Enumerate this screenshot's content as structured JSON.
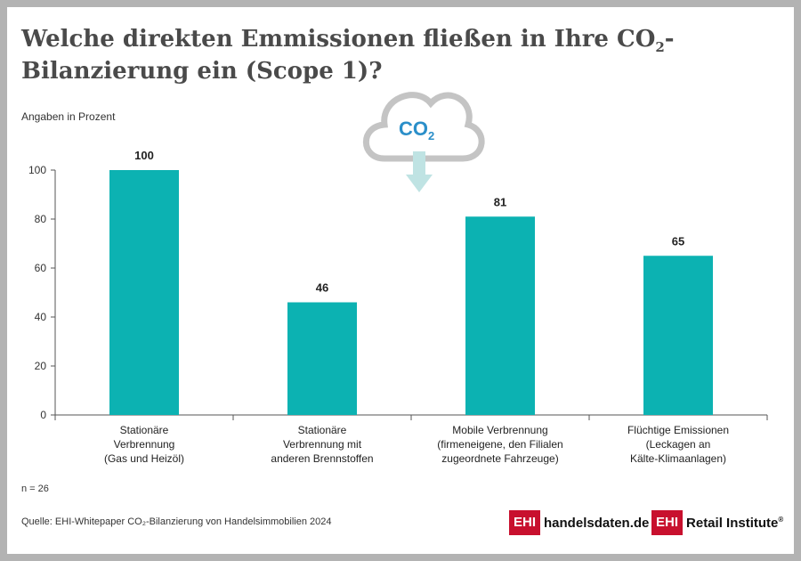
{
  "title": {
    "part1": "Welche direkten Emmissionen fließen in Ihre CO",
    "sub": "2",
    "part2": "-Bilanzierung ein (Scope 1)?"
  },
  "subtitle": "Angaben in Prozent",
  "icon": {
    "name": "co2-cloud-icon",
    "text": "CO",
    "sub": "2",
    "cloud_color": "#c4c4c4",
    "arrow_color": "#bfe3e3",
    "text_color": "#2b8fc9"
  },
  "note": "n = 26",
  "source": "Quelle: EHI-Whitepaper CO₂-Bilanzierung von Handelsimmobilien 2024",
  "logos": {
    "left": {
      "box": "EHI",
      "text": "handelsdaten.de"
    },
    "right": {
      "box": "EHI",
      "text": "Retail Institute",
      "mark": "®"
    }
  },
  "colors": {
    "bar": "#0cb2b2",
    "brand_red": "#c8102e"
  },
  "chart_data": {
    "type": "bar",
    "categories": [
      "Stationäre Verbrennung (Gas und Heizöl)",
      "Stationäre Verbrennung mit anderen Brennstoffen",
      "Mobile Verbrennung (firmeneigene, den Filialen zugeordnete Fahrzeuge)",
      "Flüchtige Emissionen (Leckagen an Kälte-Klimaanlagen)"
    ],
    "category_lines": [
      [
        "Stationäre",
        "Verbrennung",
        "(Gas und Heizöl)"
      ],
      [
        "Stationäre",
        "Verbrennung mit",
        "anderen Brennstoffen"
      ],
      [
        "Mobile Verbrennung",
        "(firmeneigene, den Filialen",
        "zugeordnete Fahrzeuge)"
      ],
      [
        "Flüchtige Emissionen",
        "(Leckagen an",
        "Kälte-Klimaanlagen)"
      ]
    ],
    "values": [
      100,
      46,
      81,
      65
    ],
    "ylim": [
      0,
      100
    ],
    "yticks": [
      0,
      20,
      40,
      60,
      80,
      100
    ],
    "ylabel": "Angaben in Prozent",
    "grid": false
  }
}
